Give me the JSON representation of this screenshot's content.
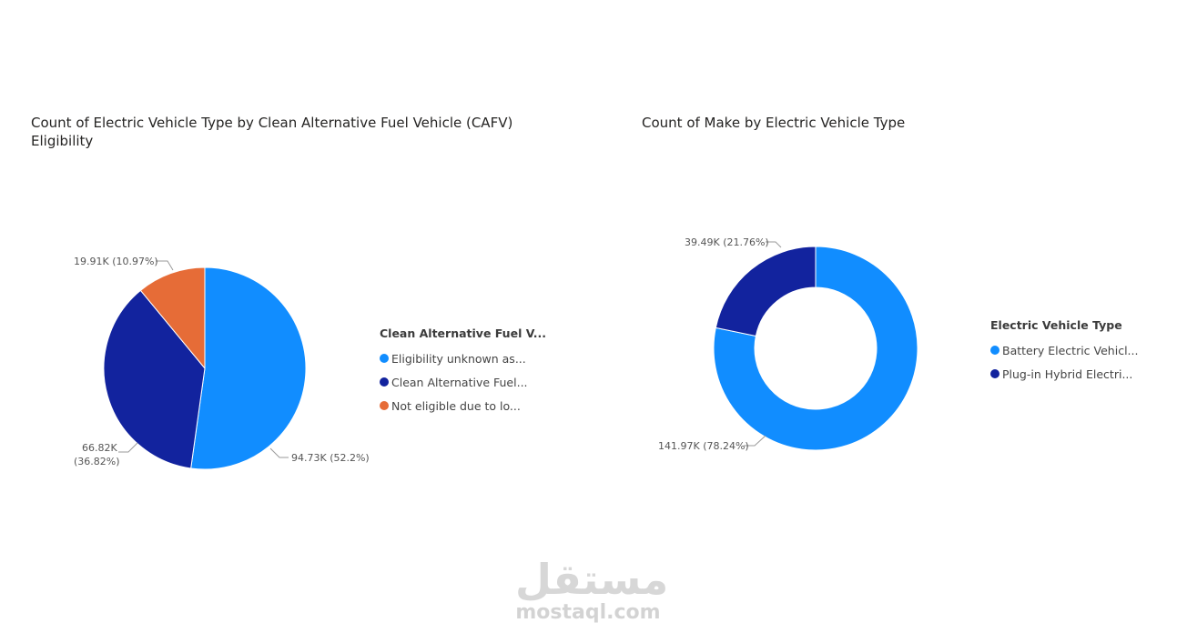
{
  "chart_data": [
    {
      "type": "pie",
      "title": "Count of Electric Vehicle Type by Clean Alternative Fuel Vehicle (CAFV) Eligibility",
      "legend_title": "Clean Alternative Fuel V...",
      "legend_position": "right",
      "slices": [
        {
          "legend_label": "Eligibility unknown as...",
          "value": 94730,
          "percent": 52.2,
          "data_label": "94.73K (52.2%)",
          "color": "#118DFF"
        },
        {
          "legend_label": "Clean Alternative Fuel...",
          "value": 66820,
          "percent": 36.82,
          "data_label_line1": "66.82K",
          "data_label_line2": "(36.82%)",
          "color": "#12239E"
        },
        {
          "legend_label": "Not eligible due to lo...",
          "value": 19910,
          "percent": 10.97,
          "data_label": "19.91K (10.97%)",
          "color": "#E66C37"
        }
      ]
    },
    {
      "type": "donut",
      "title": "Count of Make by Electric Vehicle Type",
      "legend_title": "Electric Vehicle Type",
      "legend_position": "right",
      "slices": [
        {
          "legend_label": "Battery Electric Vehicl...",
          "value": 141970,
          "percent": 78.24,
          "data_label": "141.97K (78.24%)",
          "color": "#118DFF"
        },
        {
          "legend_label": "Plug-in Hybrid Electri...",
          "value": 39490,
          "percent": 21.76,
          "data_label": "39.49K (21.76%)",
          "color": "#12239E"
        }
      ]
    }
  ],
  "watermark": {
    "arabic": "مستقل",
    "latin": "mostaql.com"
  }
}
